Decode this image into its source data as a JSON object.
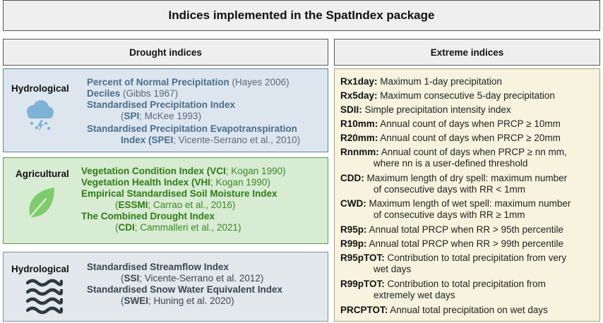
{
  "title": "Indices implemented in the SpatIndex package",
  "headers": {
    "drought": "Drought indices",
    "extreme": "Extreme indices"
  },
  "panels": {
    "hydrological_1": {
      "category": "Hydrological",
      "icon": "rain-cloud-icon",
      "indices": [
        {
          "name": "Percent of Normal Precipitation",
          "ref": " (Hayes 2006)"
        },
        {
          "name": "Deciles",
          "ref": " (Gibbs 1967)"
        },
        {
          "name": "Standardised Precipitation Index",
          "open": "(",
          "abbr": "SPI",
          "ref": "; McKee 1993)"
        },
        {
          "name": "Standardised Precipitation Evapotranspiration",
          "name2": "Index (",
          "abbr": "SPEI",
          "ref": "; Vicente-Serrano et al., 2010)"
        }
      ]
    },
    "agricultural": {
      "category": "Agricultural",
      "icon": "leaf-icon",
      "indices": [
        {
          "name": "Vegetation Condition Index (",
          "abbr": "VCI",
          "ref": "; Kogan 1990)"
        },
        {
          "name": "Vegetation Health Index (",
          "abbr": "VHI",
          "ref": "; Kogan 1990)"
        },
        {
          "name": "Empirical Standardised Soil Moisture Index",
          "open": "(",
          "abbr": "ESSMI",
          "ref": "; Carrao et al., 2016)"
        },
        {
          "name": "The Combined Drought Index",
          "open": "(",
          "abbr": "CDI",
          "ref": "; Cammalleri et al., 2021)"
        }
      ]
    },
    "hydrological_2": {
      "category": "Hydrological",
      "icon": "waves-icon",
      "indices": [
        {
          "name": "Standardised Streamflow Index",
          "open": "(",
          "abbr": "SSI",
          "ref": "; Vicente-Serrano et al. 2012)"
        },
        {
          "name": "Standardised Snow Water Equivalent Index",
          "open": "(",
          "abbr": "SWEI",
          "ref": "; Huning et al. 2020)"
        }
      ]
    }
  },
  "extreme_indices": [
    {
      "code": "Rx1day:",
      "desc": " Maximum 1-day precipitation"
    },
    {
      "code": "Rx5day:",
      "desc": " Maximum consecutive 5-day precipitation"
    },
    {
      "code": "SDII:",
      "desc": " Simple precipitation intensity index"
    },
    {
      "code": "R10mm:",
      "desc": " Annual count of days when PRCP ≥ 10mm"
    },
    {
      "code": "R20mm:",
      "desc": " Annual count of days when PRCP ≥ 20mm"
    },
    {
      "code": "Rnnmm:",
      "desc": " Annual count of days when PRCP ≥ nn mm,",
      "desc2": "where nn is a user-defined threshold"
    },
    {
      "code": "CDD:",
      "desc": " Maximum length of dry spell: maximum number",
      "desc2": "of consecutive days with RR < 1mm"
    },
    {
      "code": "CWD:",
      "desc": " Maximum length of wet spell: maximum number",
      "desc2": "of consecutive days with RR ≥ 1mm"
    },
    {
      "code": "R95p:",
      "desc": " Annual total PRCP when RR > 95th percentile"
    },
    {
      "code": "R99p:",
      "desc": " Annual total PRCP when RR > 99th percentile"
    },
    {
      "code": "R95pTOT:",
      "desc": " Contribution to total precipitation from very",
      "desc2": "wet days"
    },
    {
      "code": "R99pTOT:",
      "desc": " Contribution to total precipitation from",
      "desc2": "extremely wet days"
    },
    {
      "code": "PRCPTOT:",
      "desc": " Annual total precipitation on wet days"
    }
  ],
  "colors": {
    "hydro_panel": "#dde6ef",
    "agri_panel": "#d8ebd3",
    "extreme_panel": "#f7f3de"
  }
}
